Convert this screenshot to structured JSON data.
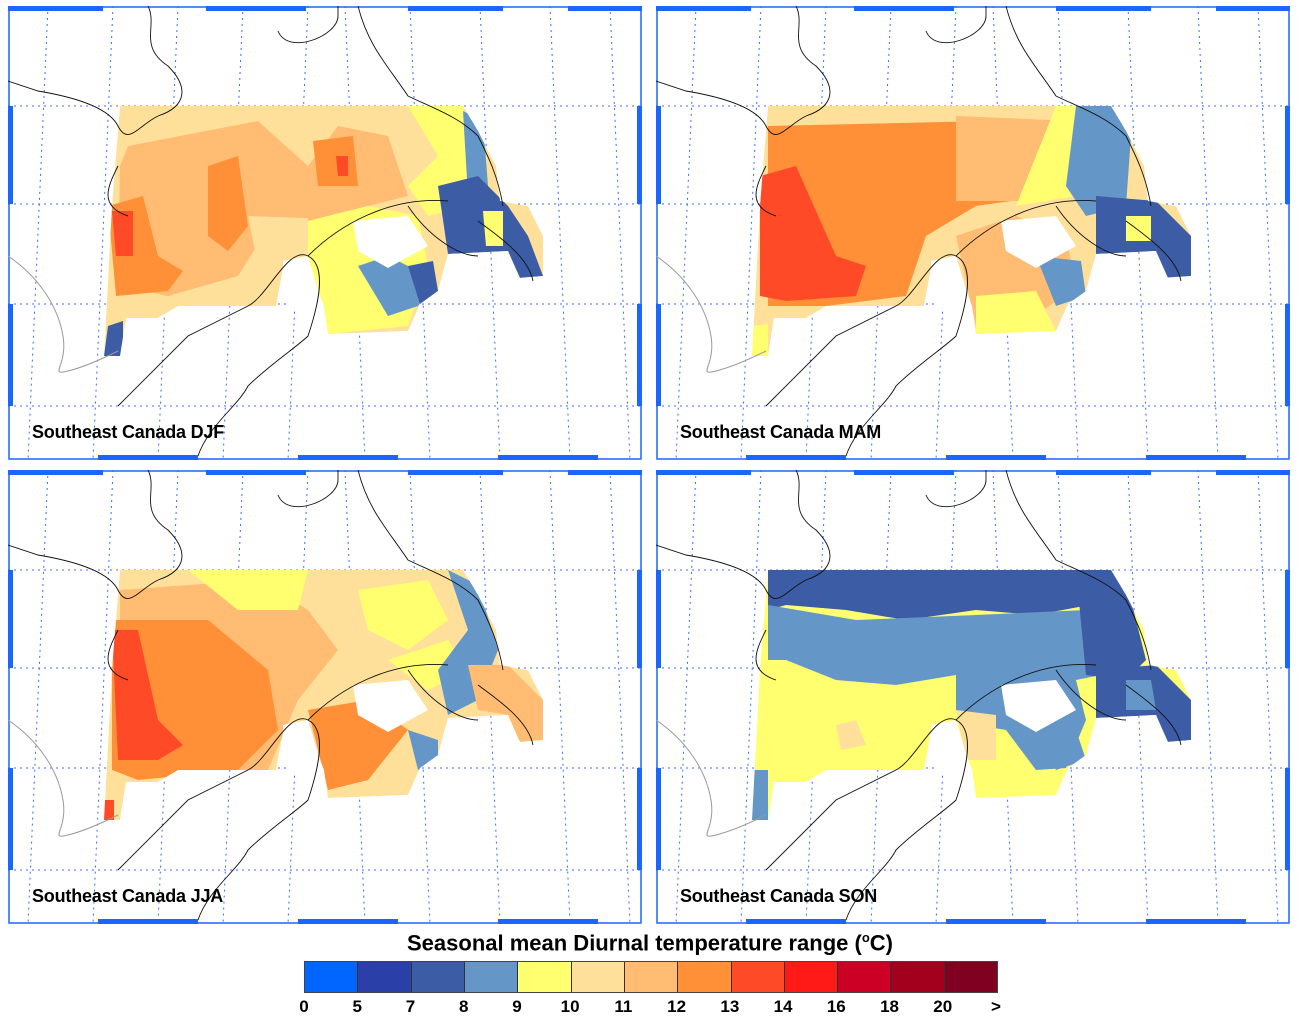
{
  "panels": [
    {
      "id": "djf",
      "title": "Southeast Canada DJF"
    },
    {
      "id": "mam",
      "title": "Southeast Canada MAM"
    },
    {
      "id": "jja",
      "title": "Southeast Canada JJA"
    },
    {
      "id": "son",
      "title": "Southeast Canada SON"
    }
  ],
  "colorbar": {
    "title_main": "Seasonal mean Diurnal temperature range (",
    "title_sup": "o",
    "title_end": "C)",
    "ticks": [
      "0",
      "5",
      "7",
      "8",
      "9",
      "10",
      "11",
      "12",
      "13",
      "14",
      "16",
      "18",
      "20",
      ">"
    ],
    "colors": [
      "#0066ff",
      "#2a3fa8",
      "#3c5ca6",
      "#6596c8",
      "#ffff70",
      "#ffe09a",
      "#ffbc72",
      "#ff9038",
      "#ff4a28",
      "#ff1a18",
      "#cc0024",
      "#a3001e",
      "#800022"
    ]
  }
}
